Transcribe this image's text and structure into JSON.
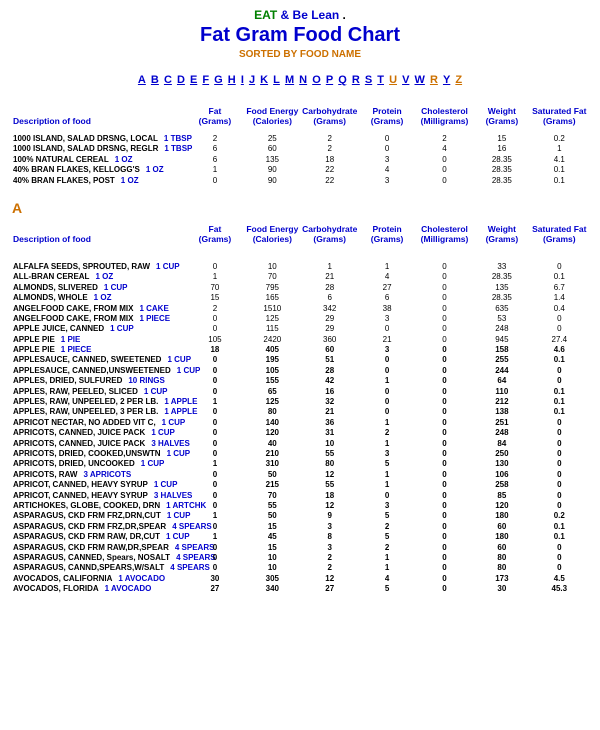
{
  "header": {
    "eat": "EAT",
    "beLean": " & Be Lean",
    "dot": " .",
    "title": "Fat Gram Food Chart",
    "sorted": "SORTED BY FOOD NAME"
  },
  "letters": [
    {
      "t": "A",
      "c": "blue"
    },
    {
      "t": "B",
      "c": "blue"
    },
    {
      "t": "C",
      "c": "blue"
    },
    {
      "t": "D",
      "c": "blue"
    },
    {
      "t": "E",
      "c": "blue"
    },
    {
      "t": "F",
      "c": "blue"
    },
    {
      "t": "G",
      "c": "blue"
    },
    {
      "t": "H",
      "c": "blue"
    },
    {
      "t": "I",
      "c": "blue"
    },
    {
      "t": "J",
      "c": "blue"
    },
    {
      "t": "K",
      "c": "blue"
    },
    {
      "t": "L",
      "c": "blue"
    },
    {
      "t": "M",
      "c": "blue"
    },
    {
      "t": "N",
      "c": "blue"
    },
    {
      "t": "O",
      "c": "blue"
    },
    {
      "t": "P",
      "c": "blue"
    },
    {
      "t": "Q",
      "c": "blue"
    },
    {
      "t": "R",
      "c": "blue"
    },
    {
      "t": "S",
      "c": "blue"
    },
    {
      "t": "T",
      "c": "blue"
    },
    {
      "t": "U",
      "c": "orange"
    },
    {
      "t": "V",
      "c": "blue"
    },
    {
      "t": "W",
      "c": "blue"
    },
    {
      "t": "R",
      "c": "orange"
    },
    {
      "t": "Y",
      "c": "blue"
    },
    {
      "t": "Z",
      "c": "orange"
    }
  ],
  "columns": [
    {
      "l1": "Description of food",
      "l2": ""
    },
    {
      "l1": "Fat",
      "l2": "(Grams)"
    },
    {
      "l1": "Food Energy",
      "l2": "(Calories)"
    },
    {
      "l1": "Carbohydrate",
      "l2": "(Grams)"
    },
    {
      "l1": "Protein",
      "l2": "(Grams)"
    },
    {
      "l1": "Cholesterol",
      "l2": "(Milligrams)"
    },
    {
      "l1": "Weight",
      "l2": "(Grams)"
    },
    {
      "l1": "Saturated Fat",
      "l2": "(Grams)"
    }
  ],
  "topRows": [
    {
      "food": "1000 ISLAND, SALAD DRSNG, LOCAL",
      "serving": "1 TBSP",
      "v": [
        "2",
        "25",
        "2",
        "0",
        "2",
        "15",
        "0.2"
      ]
    },
    {
      "food": "1000 ISLAND, SALAD DRSNG, REGLR",
      "serving": "1 TBSP",
      "v": [
        "6",
        "60",
        "2",
        "0",
        "4",
        "16",
        "1"
      ]
    },
    {
      "food": "100% NATURAL CEREAL",
      "serving": "1 OZ",
      "v": [
        "6",
        "135",
        "18",
        "3",
        "0",
        "28.35",
        "4.1"
      ]
    },
    {
      "food": "40% BRAN FLAKES, KELLOGG'S",
      "serving": "1 OZ",
      "v": [
        "1",
        "90",
        "22",
        "4",
        "0",
        "28.35",
        "0.1"
      ]
    },
    {
      "food": "40% BRAN FLAKES, POST",
      "serving": "1 OZ",
      "v": [
        "0",
        "90",
        "22",
        "3",
        "0",
        "28.35",
        "0.1"
      ]
    }
  ],
  "sectionLetter": "A",
  "rowsA": [
    {
      "food": "ALFALFA SEEDS, SPROUTED, RAW",
      "serving": "1 CUP",
      "v": [
        "0",
        "10",
        "1",
        "1",
        "0",
        "33",
        "0"
      ]
    },
    {
      "food": "ALL-BRAN CEREAL",
      "serving": "1 OZ",
      "v": [
        "1",
        "70",
        "21",
        "4",
        "0",
        "28.35",
        "0.1"
      ]
    },
    {
      "food": "ALMONDS, SLIVERED",
      "serving": "1 CUP",
      "v": [
        "70",
        "795",
        "28",
        "27",
        "0",
        "135",
        "6.7"
      ]
    },
    {
      "food": "ALMONDS, WHOLE",
      "serving": "1 OZ",
      "v": [
        "15",
        "165",
        "6",
        "6",
        "0",
        "28.35",
        "1.4"
      ]
    },
    {
      "food": "ANGELFOOD CAKE, FROM MIX",
      "serving": "1 CAKE",
      "v": [
        "2",
        "1510",
        "342",
        "38",
        "0",
        "635",
        "0.4"
      ]
    },
    {
      "food": "ANGELFOOD CAKE, FROM MIX",
      "serving": "1 PIECE",
      "v": [
        "0",
        "125",
        "29",
        "3",
        "0",
        "53",
        "0"
      ]
    },
    {
      "food": "APPLE JUICE, CANNED",
      "serving": "1 CUP",
      "v": [
        "0",
        "115",
        "29",
        "0",
        "0",
        "248",
        "0"
      ]
    },
    {
      "food": "APPLE PIE",
      "serving": "1 PIE",
      "v": [
        "105",
        "2420",
        "360",
        "21",
        "0",
        "945",
        "27.4"
      ]
    },
    {
      "bold": true,
      "food": "APPLE PIE",
      "serving": "1 PIECE",
      "v": [
        "18",
        "405",
        "60",
        "3",
        "0",
        "158",
        "4.6"
      ]
    },
    {
      "bold": true,
      "food": "APPLESAUCE, CANNED, SWEETENED",
      "serving": "1 CUP",
      "v": [
        "0",
        "195",
        "51",
        "0",
        "0",
        "255",
        "0.1"
      ]
    },
    {
      "bold": true,
      "food": "APPLESAUCE, CANNED,UNSWEETENED",
      "serving": "1 CUP",
      "v": [
        "0",
        "105",
        "28",
        "0",
        "0",
        "244",
        "0"
      ]
    },
    {
      "bold": true,
      "food": "APPLES, DRIED, SULFURED",
      "serving": "10 RINGS",
      "v": [
        "0",
        "155",
        "42",
        "1",
        "0",
        "64",
        "0"
      ]
    },
    {
      "bold": true,
      "food": "APPLES, RAW, PEELED, SLICED",
      "serving": "1 CUP",
      "v": [
        "0",
        "65",
        "16",
        "0",
        "0",
        "110",
        "0.1"
      ]
    },
    {
      "bold": true,
      "food": "APPLES, RAW, UNPEELED, 2 PER LB.",
      "serving": "1 APPLE",
      "v": [
        "1",
        "125",
        "32",
        "0",
        "0",
        "212",
        "0.1"
      ]
    },
    {
      "bold": true,
      "food": "APPLES, RAW, UNPEELED, 3 PER LB.",
      "serving": "1 APPLE",
      "v": [
        "0",
        "80",
        "21",
        "0",
        "0",
        "138",
        "0.1"
      ]
    },
    {
      "bold": true,
      "food": "APRICOT NECTAR, NO ADDED VIT C,",
      "serving": "1 CUP",
      "v": [
        "0",
        "140",
        "36",
        "1",
        "0",
        "251",
        "0"
      ]
    },
    {
      "bold": true,
      "food": "APRICOTS, CANNED, JUICE PACK",
      "serving": "1 CUP",
      "v": [
        "0",
        "120",
        "31",
        "2",
        "0",
        "248",
        "0"
      ]
    },
    {
      "bold": true,
      "food": "APRICOTS, CANNED, JUICE PACK",
      "serving": "3 HALVES",
      "v": [
        "0",
        "40",
        "10",
        "1",
        "0",
        "84",
        "0"
      ]
    },
    {
      "bold": true,
      "food": "APRICOTS, DRIED, COOKED,UNSWTN",
      "serving": "1 CUP",
      "v": [
        "0",
        "210",
        "55",
        "3",
        "0",
        "250",
        "0"
      ]
    },
    {
      "bold": true,
      "food": "APRICOTS, DRIED, UNCOOKED",
      "serving": "1 CUP",
      "v": [
        "1",
        "310",
        "80",
        "5",
        "0",
        "130",
        "0"
      ]
    },
    {
      "bold": true,
      "food": "APRICOTS, RAW",
      "serving": "3 APRICOTS",
      "v": [
        "0",
        "50",
        "12",
        "1",
        "0",
        "106",
        "0"
      ]
    },
    {
      "bold": true,
      "food": "APRICOT, CANNED, HEAVY SYRUP",
      "serving": "1 CUP",
      "v": [
        "0",
        "215",
        "55",
        "1",
        "0",
        "258",
        "0"
      ]
    },
    {
      "bold": true,
      "food": "APRICOT, CANNED, HEAVY SYRUP",
      "serving": "3 HALVES",
      "v": [
        "0",
        "70",
        "18",
        "0",
        "0",
        "85",
        "0"
      ]
    },
    {
      "bold": true,
      "food": "ARTICHOKES, GLOBE, COOKED, DRN",
      "serving": "1 ARTCHK",
      "v": [
        "0",
        "55",
        "12",
        "3",
        "0",
        "120",
        "0"
      ]
    },
    {
      "bold": true,
      "food": "ASPARAGUS, CKD FRM FRZ,DRN,CUT",
      "serving": "1 CUP",
      "v": [
        "1",
        "50",
        "9",
        "5",
        "0",
        "180",
        "0.2"
      ]
    },
    {
      "bold": true,
      "food": "ASPARAGUS, CKD FRM FRZ,DR,SPEAR",
      "serving": "4 SPEARS",
      "v": [
        "0",
        "15",
        "3",
        "2",
        "0",
        "60",
        "0.1"
      ]
    },
    {
      "bold": true,
      "food": "ASPARAGUS, CKD FRM RAW, DR,CUT",
      "serving": "1 CUP",
      "v": [
        "1",
        "45",
        "8",
        "5",
        "0",
        "180",
        "0.1"
      ]
    },
    {
      "bold": true,
      "food": "ASPARAGUS, CKD FRM RAW,DR,SPEAR",
      "serving": "4 SPEARS",
      "v": [
        "0",
        "15",
        "3",
        "2",
        "0",
        "60",
        "0"
      ]
    },
    {
      "bold": true,
      "food": "ASPARAGUS, CANNED, Spears, NOSALT",
      "serving": "4 SPEARS",
      "v": [
        "0",
        "10",
        "2",
        "1",
        "0",
        "80",
        "0"
      ]
    },
    {
      "bold": true,
      "food": "ASPARAGUS, CANND,SPEARS,W/SALT",
      "serving": "4 SPEARS",
      "v": [
        "0",
        "10",
        "2",
        "1",
        "0",
        "80",
        "0"
      ]
    },
    {
      "bold": true,
      "food": "AVOCADOS, CALIFORNIA",
      "serving": "1 AVOCADO",
      "v": [
        "30",
        "305",
        "12",
        "4",
        "0",
        "173",
        "4.5"
      ]
    },
    {
      "bold": true,
      "food": "AVOCADOS, FLORIDA",
      "serving": "1 AVOCADO",
      "v": [
        "27",
        "340",
        "27",
        "5",
        "0",
        "30",
        "45.3"
      ]
    }
  ]
}
